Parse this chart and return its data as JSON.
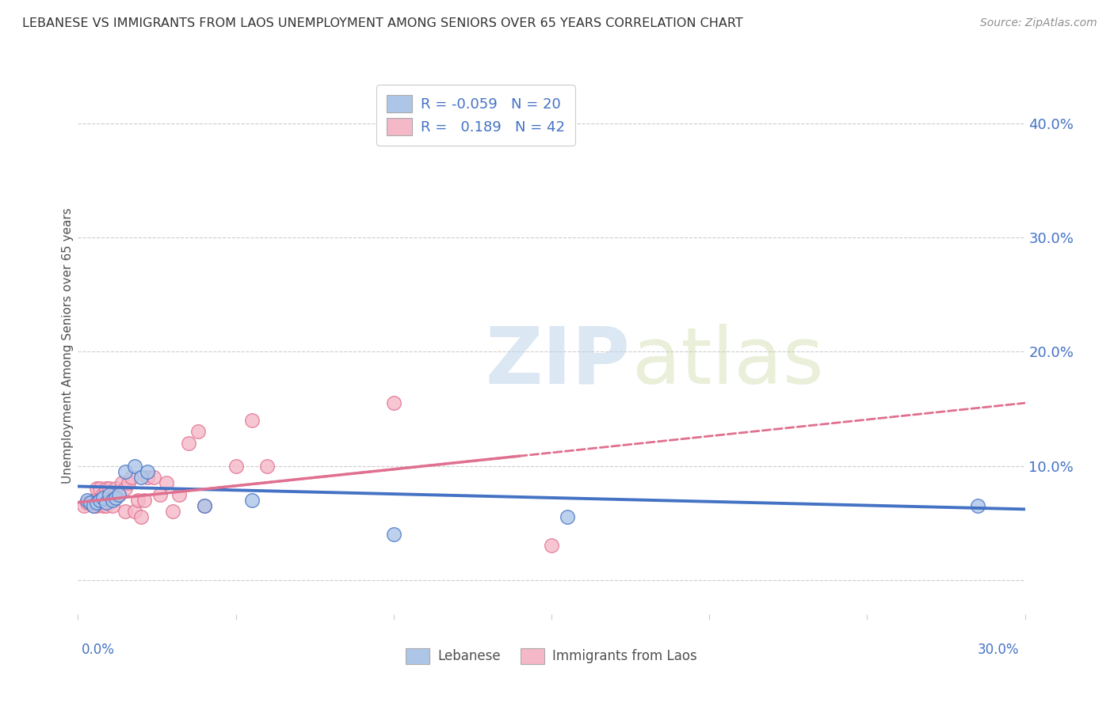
{
  "title": "LEBANESE VS IMMIGRANTS FROM LAOS UNEMPLOYMENT AMONG SENIORS OVER 65 YEARS CORRELATION CHART",
  "source": "Source: ZipAtlas.com",
  "ylabel": "Unemployment Among Seniors over 65 years",
  "ylabel_right_vals": [
    0.0,
    0.1,
    0.2,
    0.3,
    0.4
  ],
  "ylabel_right_labels": [
    "",
    "10.0%",
    "20.0%",
    "30.0%",
    "40.0%"
  ],
  "xlim": [
    0.0,
    0.3
  ],
  "ylim": [
    -0.03,
    0.44
  ],
  "legend_r_lebanese": "-0.059",
  "legend_n_lebanese": "20",
  "legend_r_laos": "0.189",
  "legend_n_laos": "42",
  "color_lebanese": "#adc6e8",
  "color_laos": "#f5b8c8",
  "color_lebanese_line": "#4472c4",
  "color_laos_line": "#e07090",
  "color_title": "#404040",
  "color_source": "#909090",
  "color_axis_blue": "#4472c4",
  "color_legend_text": "#4472c4",
  "color_grid": "#cccccc",
  "background_color": "#ffffff",
  "lebanese_x": [
    0.003,
    0.004,
    0.005,
    0.006,
    0.007,
    0.008,
    0.009,
    0.01,
    0.011,
    0.012,
    0.013,
    0.015,
    0.018,
    0.02,
    0.022,
    0.04,
    0.055,
    0.1,
    0.155,
    0.285
  ],
  "lebanese_y": [
    0.07,
    0.068,
    0.065,
    0.068,
    0.07,
    0.072,
    0.068,
    0.075,
    0.07,
    0.072,
    0.075,
    0.095,
    0.1,
    0.09,
    0.095,
    0.065,
    0.07,
    0.04,
    0.055,
    0.065
  ],
  "laos_x": [
    0.002,
    0.003,
    0.004,
    0.005,
    0.005,
    0.006,
    0.006,
    0.007,
    0.007,
    0.008,
    0.008,
    0.009,
    0.009,
    0.01,
    0.01,
    0.011,
    0.012,
    0.012,
    0.013,
    0.014,
    0.015,
    0.015,
    0.016,
    0.017,
    0.018,
    0.019,
    0.02,
    0.021,
    0.022,
    0.024,
    0.026,
    0.028,
    0.03,
    0.032,
    0.035,
    0.038,
    0.04,
    0.05,
    0.055,
    0.06,
    0.1,
    0.15
  ],
  "laos_y": [
    0.065,
    0.068,
    0.068,
    0.07,
    0.065,
    0.08,
    0.065,
    0.08,
    0.068,
    0.075,
    0.065,
    0.08,
    0.065,
    0.08,
    0.07,
    0.065,
    0.075,
    0.08,
    0.075,
    0.085,
    0.08,
    0.06,
    0.085,
    0.09,
    0.06,
    0.07,
    0.055,
    0.07,
    0.09,
    0.09,
    0.075,
    0.085,
    0.06,
    0.075,
    0.12,
    0.13,
    0.065,
    0.1,
    0.14,
    0.1,
    0.155,
    0.03
  ],
  "leb_trend_x": [
    0.0,
    0.3
  ],
  "leb_trend_y": [
    0.082,
    0.062
  ],
  "laos_trend_x": [
    0.0,
    0.3
  ],
  "laos_trend_y": [
    0.068,
    0.155
  ]
}
